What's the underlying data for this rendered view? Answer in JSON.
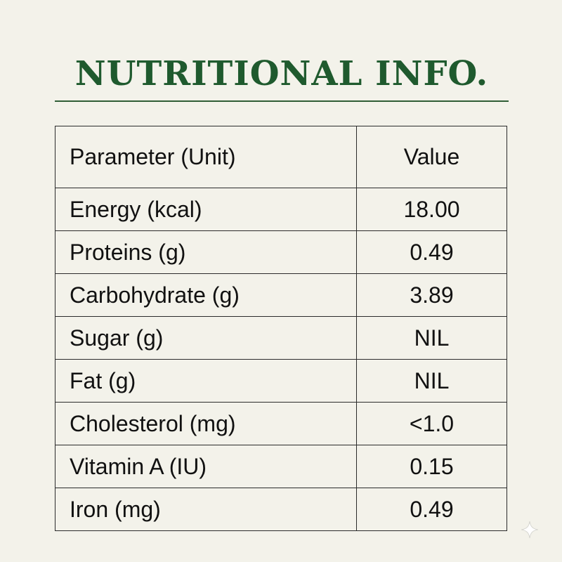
{
  "title": "NUTRITIONAL INFO.",
  "table": {
    "headers": {
      "parameter": "Parameter (Unit)",
      "value": "Value"
    },
    "rows": [
      {
        "parameter": "Energy (kcal)",
        "value": "18.00"
      },
      {
        "parameter": "Proteins (g)",
        "value": "0.49"
      },
      {
        "parameter": "Carbohydrate (g)",
        "value": "3.89"
      },
      {
        "parameter": "Sugar (g)",
        "value": "NIL"
      },
      {
        "parameter": "Fat (g)",
        "value": "NIL"
      },
      {
        "parameter": "Cholesterol (mg)",
        "value": "<1.0"
      },
      {
        "parameter": "Vitamin A (IU)",
        "value": "0.15"
      },
      {
        "parameter": "Iron (mg)",
        "value": "0.49"
      }
    ]
  },
  "colors": {
    "background": "#f3f2ea",
    "title": "#1f5a2e",
    "rule": "#2f5e36",
    "text": "#111111",
    "border": "#2b2b2b"
  },
  "icons": {
    "corner": "sparkle-icon"
  }
}
